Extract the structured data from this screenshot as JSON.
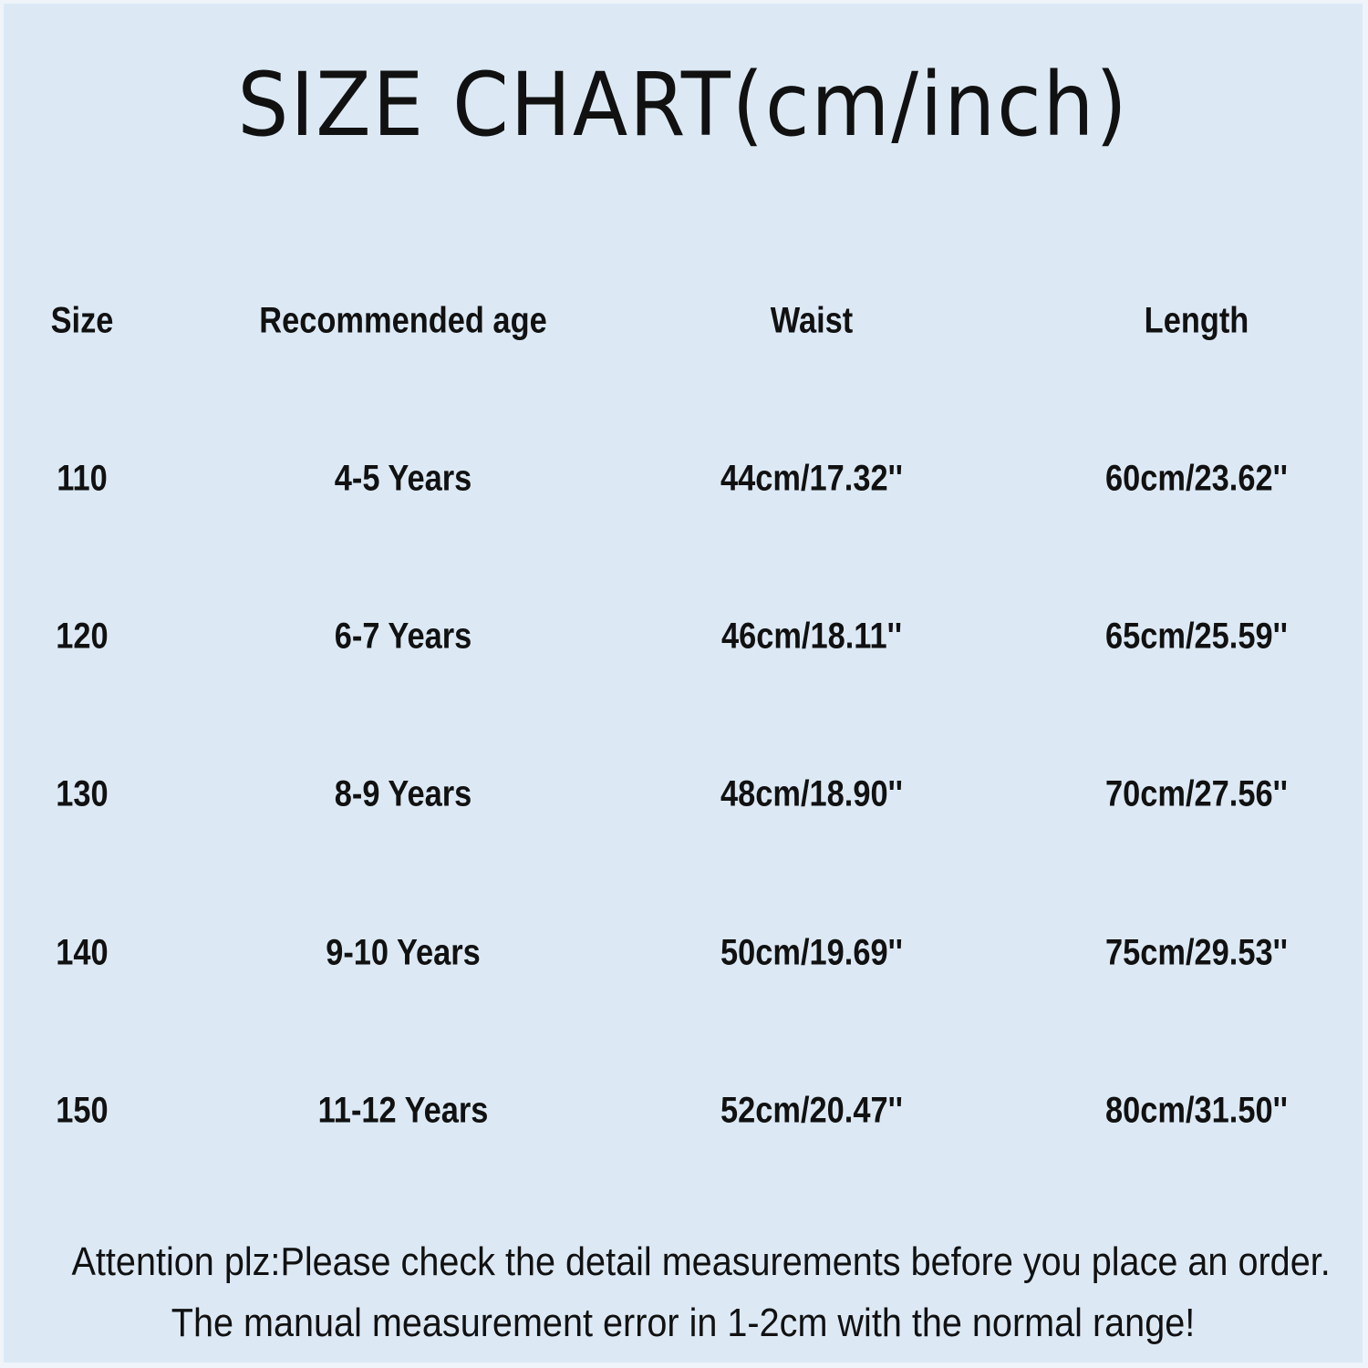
{
  "title": "SIZE CHART(cm/inch)",
  "background_color": "#dce9f5",
  "table": {
    "headers": [
      "Size",
      "Recommended age",
      "Waist",
      "Length"
    ],
    "rows": [
      [
        "110",
        "4-5 Years",
        "44cm/17.32''",
        "60cm/23.62''"
      ],
      [
        "120",
        "6-7 Years",
        "46cm/18.11''",
        "65cm/25.59''"
      ],
      [
        "130",
        "8-9 Years",
        "48cm/18.90''",
        "70cm/27.56''"
      ],
      [
        "140",
        "9-10 Years",
        "50cm/19.69''",
        "75cm/29.53''"
      ],
      [
        "150",
        "11-12 Years",
        "52cm/20.47''",
        "80cm/31.50''"
      ]
    ]
  },
  "notes": [
    "Attention plz:Please check the detail measurements before you place an order.",
    "The manual measurement error in 1-2cm with the normal range!"
  ]
}
